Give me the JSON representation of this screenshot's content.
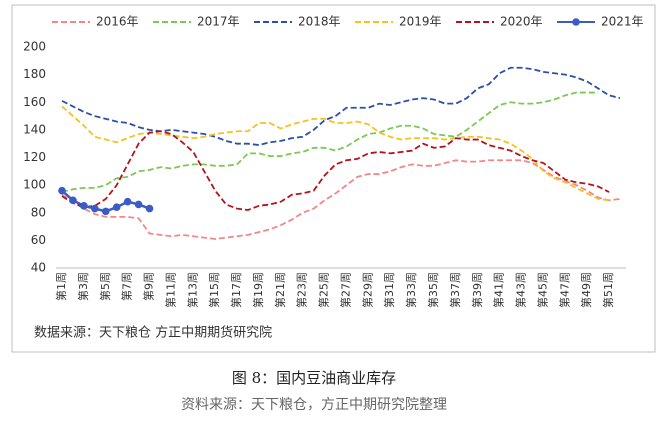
{
  "chart_data": {
    "type": "line",
    "source_note": "数据来源：天下粮仓 方正中期期货研究院",
    "caption": "图 8：国内豆油商业库存",
    "caption_source": "资料来源：天下粮仓，方正中期研究院整理",
    "categories": [
      "第1周",
      null,
      "第3周",
      null,
      "第5周",
      null,
      "第7周",
      null,
      "第9周",
      null,
      "第11周",
      null,
      "第13周",
      null,
      "第15周",
      null,
      "第17周",
      null,
      "第19周",
      null,
      "第21周",
      null,
      "第23周",
      null,
      "第25周",
      null,
      "第27周",
      null,
      "第29周",
      null,
      "第31周",
      null,
      "第33周",
      null,
      "第35周",
      null,
      "第37周",
      null,
      "第39周",
      null,
      "第41周",
      null,
      "第43周",
      null,
      "第45周",
      null,
      "第47周",
      null,
      "第49周",
      null,
      "第51周",
      null
    ],
    "ylim": [
      40,
      200
    ],
    "yticks": [
      40,
      60,
      80,
      100,
      120,
      140,
      160,
      180,
      200
    ],
    "legend": "top",
    "series": [
      {
        "name": "2016年",
        "color": "#f4868a",
        "dashed": true,
        "values": [
          93,
          88,
          83,
          79,
          77,
          77,
          77,
          76,
          65,
          64,
          63,
          64,
          63,
          62,
          61,
          62,
          63,
          64,
          66,
          68,
          71,
          75,
          80,
          83,
          89,
          94,
          100,
          106,
          108,
          108,
          110,
          113,
          115,
          114,
          114,
          116,
          118,
          117,
          117,
          118,
          118,
          118,
          118,
          116,
          111,
          106,
          103,
          100,
          96,
          91,
          89,
          90
        ]
      },
      {
        "name": "2017年",
        "color": "#7dc855",
        "dashed": true,
        "values": [
          95,
          97,
          98,
          98,
          100,
          105,
          106,
          110,
          111,
          113,
          112,
          114,
          115,
          115,
          114,
          114,
          115,
          123,
          123,
          121,
          121,
          123,
          124,
          127,
          127,
          125,
          128,
          133,
          137,
          138,
          141,
          143,
          143,
          141,
          137,
          136,
          135,
          140,
          146,
          152,
          158,
          160,
          159,
          159,
          160,
          162,
          165,
          167,
          167,
          167,
          null,
          null
        ]
      },
      {
        "name": "2018年",
        "color": "#2a50a8",
        "dashed": true,
        "values": [
          161,
          157,
          153,
          150,
          148,
          146,
          145,
          142,
          140,
          139,
          140,
          139,
          138,
          137,
          135,
          132,
          130,
          130,
          129,
          131,
          132,
          134,
          135,
          140,
          147,
          150,
          156,
          156,
          156,
          159,
          158,
          160,
          162,
          163,
          162,
          159,
          159,
          163,
          170,
          173,
          181,
          185,
          185,
          184,
          182,
          181,
          180,
          178,
          175,
          170,
          165,
          163
        ]
      },
      {
        "name": "2019年",
        "color": "#f7c21b",
        "dashed": true,
        "values": [
          157,
          150,
          143,
          135,
          133,
          131,
          134,
          137,
          138,
          137,
          136,
          135,
          134,
          135,
          137,
          138,
          139,
          139,
          145,
          145,
          141,
          144,
          146,
          148,
          148,
          145,
          145,
          146,
          144,
          138,
          135,
          133,
          134,
          134,
          134,
          133,
          134,
          135,
          135,
          134,
          133,
          130,
          125,
          119,
          110,
          105,
          102,
          98,
          94,
          90,
          89,
          null
        ]
      },
      {
        "name": "2020年",
        "color": "#b3141c",
        "dashed": true,
        "values": [
          92,
          87,
          84,
          85,
          90,
          100,
          115,
          130,
          138,
          139,
          137,
          131,
          124,
          110,
          96,
          86,
          83,
          82,
          85,
          86,
          88,
          93,
          94,
          96,
          107,
          115,
          118,
          119,
          123,
          124,
          123,
          124,
          125,
          130,
          127,
          128,
          134,
          133,
          133,
          129,
          127,
          125,
          121,
          118,
          116,
          110,
          104,
          102,
          101,
          99,
          95,
          null
        ]
      },
      {
        "name": "2021年",
        "color": "#3b5cc4",
        "dashed": false,
        "markers": true,
        "values": [
          96,
          89,
          85,
          83,
          81,
          84,
          88,
          86,
          83,
          null,
          null,
          null,
          null,
          null,
          null,
          null,
          null,
          null,
          null,
          null,
          null,
          null,
          null,
          null,
          null,
          null,
          null,
          null,
          null,
          null,
          null,
          null,
          null,
          null,
          null,
          null,
          null,
          null,
          null,
          null,
          null,
          null,
          null,
          null,
          null,
          null,
          null,
          null,
          null,
          null,
          null,
          null
        ]
      }
    ]
  }
}
